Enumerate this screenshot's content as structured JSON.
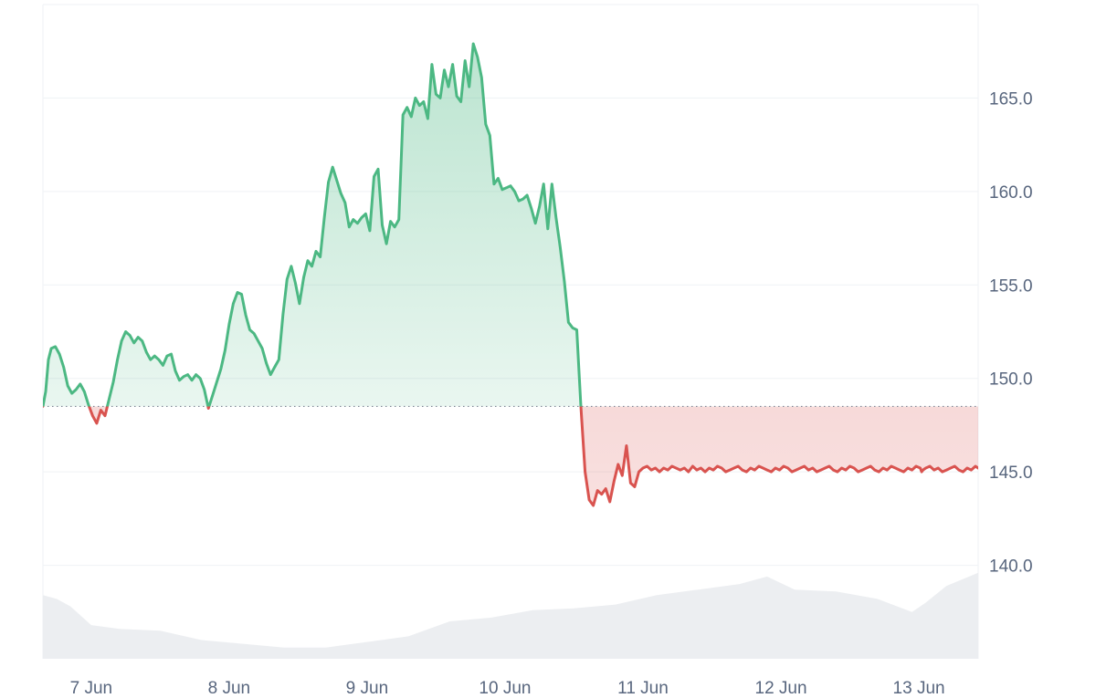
{
  "chart_data": {
    "type": "line",
    "title": "",
    "xlabel": "",
    "ylabel": "",
    "x_ticks": [
      "7 Jun",
      "8 Jun",
      "9 Jun",
      "10 Jun",
      "11 Jun",
      "12 Jun",
      "13 Jun"
    ],
    "y_ticks": [
      "140.0",
      "145.0",
      "150.0",
      "155.0",
      "160.0",
      "165.0"
    ],
    "ylim": [
      135.0,
      170.0
    ],
    "xlim": [
      6.65,
      13.43
    ],
    "baseline": 148.5,
    "grid": true,
    "y_axis_side": "right",
    "colors": {
      "above": "#4cb883",
      "below": "#d9534f",
      "volume": "#eceef1",
      "grid": "#eff2f5"
    },
    "series": [
      {
        "x": [
          6.65,
          6.67,
          6.69,
          6.71,
          6.74,
          6.77,
          6.8,
          6.83,
          6.86,
          6.89,
          6.92,
          6.95,
          6.98,
          7.01,
          7.04,
          7.07,
          7.1,
          7.13,
          7.16,
          7.19,
          7.22,
          7.25,
          7.28,
          7.31,
          7.34,
          7.37,
          7.4,
          7.43,
          7.46,
          7.49,
          7.52,
          7.55,
          7.58,
          7.61,
          7.64,
          7.67,
          7.7,
          7.73,
          7.76,
          7.79,
          7.82,
          7.85,
          7.88,
          7.91,
          7.94,
          7.97,
          8.0,
          8.03,
          8.06,
          8.09,
          8.12,
          8.15,
          8.18,
          8.21,
          8.24,
          8.27,
          8.3,
          8.33,
          8.36,
          8.39,
          8.42,
          8.45,
          8.48,
          8.51,
          8.54,
          8.57,
          8.6,
          8.63,
          8.66,
          8.69,
          8.72,
          8.75,
          8.78,
          8.81,
          8.84,
          8.87,
          8.9,
          8.93,
          8.96,
          8.99,
          9.02,
          9.05,
          9.08,
          9.11,
          9.14,
          9.17,
          9.2,
          9.23,
          9.26,
          9.29,
          9.32,
          9.35,
          9.38,
          9.41,
          9.44,
          9.47,
          9.5,
          9.53,
          9.56,
          9.59,
          9.62,
          9.65,
          9.68,
          9.71,
          9.74,
          9.77,
          9.8,
          9.83,
          9.86,
          9.89,
          9.92,
          9.95,
          9.98,
          10.01,
          10.04,
          10.07,
          10.1,
          10.13,
          10.16,
          10.19,
          10.22,
          10.25,
          10.28,
          10.31,
          10.34,
          10.37,
          10.4,
          10.43,
          10.46,
          10.49,
          10.52,
          10.55,
          10.58,
          10.61,
          10.64,
          10.67,
          10.7,
          10.73,
          10.76,
          10.79,
          10.82,
          10.85,
          10.88,
          10.91,
          10.94,
          10.97,
          11.0,
          11.03,
          11.06,
          11.09,
          11.12,
          11.15,
          11.18,
          11.21,
          11.24,
          11.27,
          11.3,
          11.33,
          11.36,
          11.39,
          11.42,
          11.45,
          11.48,
          11.51,
          11.54,
          11.57,
          11.6,
          11.63,
          11.66,
          11.69,
          11.72,
          11.75,
          11.78,
          11.81,
          11.84,
          11.87,
          11.9,
          11.93,
          11.96,
          11.99,
          12.02,
          12.05,
          12.08,
          12.11,
          12.14,
          12.17,
          12.2,
          12.23,
          12.26,
          12.29,
          12.32,
          12.35,
          12.38,
          12.41,
          12.44,
          12.47,
          12.5,
          12.53,
          12.56,
          12.59,
          12.62,
          12.65,
          12.68,
          12.71,
          12.74,
          12.77,
          12.8,
          12.83,
          12.86,
          12.89,
          12.92,
          12.95,
          12.98,
          13.01,
          13.02,
          13.03,
          13.05,
          13.08,
          13.11,
          13.14,
          13.17,
          13.2,
          13.23,
          13.26,
          13.29,
          13.32,
          13.35,
          13.38,
          13.41,
          13.43
        ],
        "y": [
          148.5,
          149.3,
          151.0,
          151.6,
          151.7,
          151.3,
          150.6,
          149.6,
          149.2,
          149.4,
          149.7,
          149.3,
          148.6,
          148.0,
          147.6,
          148.3,
          148.0,
          148.9,
          149.8,
          151.0,
          152.0,
          152.5,
          152.3,
          151.9,
          152.2,
          152.0,
          151.4,
          151.0,
          151.2,
          151.0,
          150.7,
          151.2,
          151.3,
          150.4,
          149.9,
          150.1,
          150.2,
          149.9,
          150.2,
          150.0,
          149.4,
          148.4,
          149.1,
          149.8,
          150.5,
          151.5,
          152.9,
          154.0,
          154.6,
          154.5,
          153.4,
          152.6,
          152.4,
          152.0,
          151.6,
          150.8,
          150.2,
          150.6,
          151.0,
          153.4,
          155.3,
          156.0,
          155.1,
          154.0,
          155.4,
          156.3,
          156.0,
          156.8,
          156.5,
          158.6,
          160.5,
          161.3,
          160.6,
          159.9,
          159.4,
          158.1,
          158.5,
          158.3,
          158.6,
          158.8,
          157.9,
          160.8,
          161.2,
          158.2,
          157.2,
          158.4,
          158.1,
          158.5,
          164.1,
          164.5,
          164.0,
          165.0,
          164.6,
          164.8,
          163.9,
          166.8,
          165.2,
          165.0,
          166.5,
          165.6,
          166.8,
          165.1,
          164.8,
          167.0,
          165.6,
          167.9,
          167.2,
          166.1,
          163.6,
          163.0,
          160.4,
          160.7,
          160.1,
          160.2,
          160.3,
          160.0,
          159.5,
          159.6,
          159.8,
          159.1,
          158.3,
          159.2,
          160.4,
          158.0,
          160.4,
          158.6,
          157.0,
          155.2,
          153.0,
          152.7,
          152.6,
          148.5,
          145.0,
          143.5,
          143.2,
          144.0,
          143.8,
          144.1,
          143.4,
          144.5,
          145.4,
          144.8,
          146.4,
          144.4,
          144.2,
          145.0,
          145.2,
          145.3,
          145.1,
          145.2,
          145.0,
          145.2,
          145.1,
          145.3,
          145.2,
          145.1,
          145.2,
          145.0,
          145.3,
          145.1,
          145.2,
          145.0,
          145.2,
          145.1,
          145.3,
          145.2,
          145.0,
          145.1,
          145.2,
          145.3,
          145.1,
          145.0,
          145.2,
          145.1,
          145.3,
          145.2,
          145.1,
          145.0,
          145.2,
          145.1,
          145.3,
          145.2,
          145.0,
          145.1,
          145.2,
          145.3,
          145.1,
          145.2,
          145.0,
          145.1,
          145.2,
          145.3,
          145.1,
          145.0,
          145.2,
          145.1,
          145.3,
          145.2,
          145.0,
          145.1,
          145.2,
          145.3,
          145.1,
          145.0,
          145.2,
          145.1,
          145.3,
          145.2,
          145.1,
          145.0,
          145.2,
          145.1,
          145.3,
          145.2,
          145.0,
          145.1,
          145.2,
          145.3,
          145.1,
          145.2,
          145.0,
          145.1,
          145.2,
          145.3,
          145.1,
          145.0,
          145.2,
          145.1,
          145.3,
          145.2
        ]
      },
      {
        "x": [
          6.65,
          6.75,
          6.85,
          7.0,
          7.2,
          7.5,
          7.8,
          8.1,
          8.4,
          8.7,
          9.0,
          9.3,
          9.6,
          9.9,
          10.2,
          10.5,
          10.8,
          11.1,
          11.4,
          11.7,
          11.9,
          12.1,
          12.4,
          12.7,
          12.95,
          13.05,
          13.2,
          13.43
        ],
        "y": [
          138.4,
          138.2,
          137.8,
          136.8,
          136.6,
          136.5,
          136.0,
          135.8,
          135.6,
          135.6,
          135.9,
          136.2,
          137.0,
          137.2,
          137.6,
          137.7,
          137.9,
          138.4,
          138.7,
          139.0,
          139.4,
          138.7,
          138.6,
          138.2,
          137.5,
          138.0,
          138.9,
          139.6
        ]
      }
    ]
  }
}
